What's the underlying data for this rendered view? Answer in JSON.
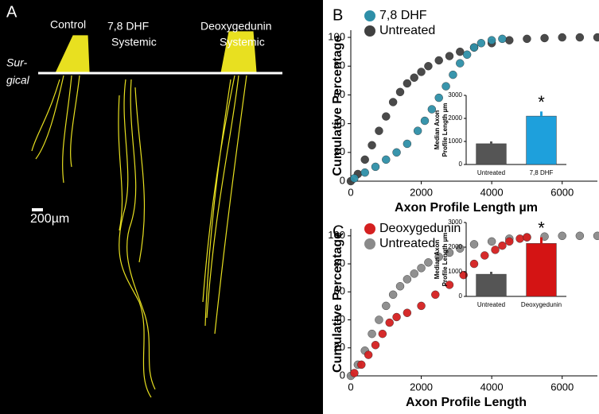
{
  "panel_a": {
    "label": "A",
    "control": "Control",
    "dhf": [
      "7,8 DHF",
      "Systemic"
    ],
    "deoxy": [
      "Deoxygedunin",
      "Systemic"
    ],
    "surgical": [
      "Sur-",
      "gical"
    ],
    "scale_bar": "200µm"
  },
  "chart_data": [
    {
      "type": "scatter",
      "panel_label": "B",
      "xlabel": "Axon Profile Length µm",
      "ylabel": "Cumulative Percentage",
      "xlim": [
        0,
        7000
      ],
      "xticks": [
        0,
        2000,
        4000,
        6000
      ],
      "ylim": [
        0,
        105
      ],
      "yticks": [
        0,
        20,
        40,
        60,
        80,
        100
      ],
      "legend": "upper left",
      "series": [
        {
          "name": "7,8 DHF",
          "color": "#2e8fa8",
          "x": [
            100,
            400,
            700,
            1000,
            1300,
            1600,
            1900,
            2100,
            2300,
            2500,
            2700,
            2900,
            3100,
            3300,
            3500,
            3700,
            4000,
            4300
          ],
          "values": [
            2,
            6,
            10,
            15,
            20,
            26,
            35,
            42,
            50,
            58,
            66,
            74,
            82,
            88,
            93,
            96,
            98,
            99
          ]
        },
        {
          "name": "Untreated",
          "color": "#404040",
          "x": [
            0,
            200,
            400,
            600,
            800,
            1000,
            1200,
            1400,
            1600,
            1800,
            2000,
            2200,
            2500,
            2800,
            3100,
            3500,
            4000,
            4500,
            5000,
            5500,
            6000,
            6500,
            7000
          ],
          "values": [
            0,
            5,
            15,
            25,
            35,
            45,
            55,
            62,
            68,
            72,
            76,
            80,
            84,
            87,
            90,
            93,
            96,
            98,
            99,
            99.5,
            100,
            100,
            100
          ]
        }
      ]
    },
    {
      "type": "bar",
      "ylabel": [
        "Median Axon",
        "Profile Length µm"
      ],
      "categories": [
        "Untreated",
        "7,8 DHF"
      ],
      "values": [
        900,
        2100
      ],
      "errors": [
        100,
        200
      ],
      "colors": [
        "#555555",
        "#1ea0dc"
      ],
      "ylim": [
        0,
        3000
      ],
      "yticks": [
        0,
        1000,
        2000,
        3000
      ],
      "annotation": "*"
    },
    {
      "type": "scatter",
      "panel_label": "C",
      "xlabel": "Axon Profile Length",
      "ylabel": "Cumulative Percentage",
      "xlim": [
        0,
        7000
      ],
      "xticks": [
        0,
        2000,
        4000,
        6000
      ],
      "ylim": [
        0,
        105
      ],
      "yticks": [
        0,
        20,
        40,
        60,
        80,
        100
      ],
      "legend": "upper left",
      "series": [
        {
          "name": "Deoxygedunin",
          "color": "#d42020",
          "x": [
            100,
            300,
            500,
            700,
            900,
            1100,
            1300,
            1600,
            2000,
            2400,
            2800,
            3200,
            3500,
            3800,
            4100,
            4300,
            4500,
            4800,
            5000
          ],
          "values": [
            2,
            8,
            15,
            22,
            30,
            38,
            42,
            45,
            50,
            58,
            65,
            72,
            80,
            86,
            90,
            93,
            96,
            98,
            99
          ]
        },
        {
          "name": "Untreated",
          "color": "#8a8a8a",
          "x": [
            0,
            200,
            400,
            600,
            800,
            1000,
            1200,
            1400,
            1600,
            1800,
            2000,
            2200,
            2500,
            2800,
            3100,
            3500,
            4000,
            4500,
            5000,
            5500,
            6000,
            6500,
            7000
          ],
          "values": [
            0,
            8,
            18,
            30,
            40,
            50,
            58,
            64,
            69,
            73,
            77,
            81,
            85,
            88,
            91,
            94,
            96,
            98,
            99,
            99.5,
            100,
            100,
            100
          ]
        }
      ]
    },
    {
      "type": "bar",
      "ylabel": [
        "Median Axon",
        "Profile Length µm"
      ],
      "categories": [
        "Untreated",
        "Deoxygedunin"
      ],
      "values": [
        900,
        2150
      ],
      "errors": [
        100,
        250
      ],
      "colors": [
        "#555555",
        "#d41414"
      ],
      "ylim": [
        0,
        3000
      ],
      "yticks": [
        0,
        1000,
        2000,
        3000
      ],
      "annotation": "*"
    }
  ]
}
